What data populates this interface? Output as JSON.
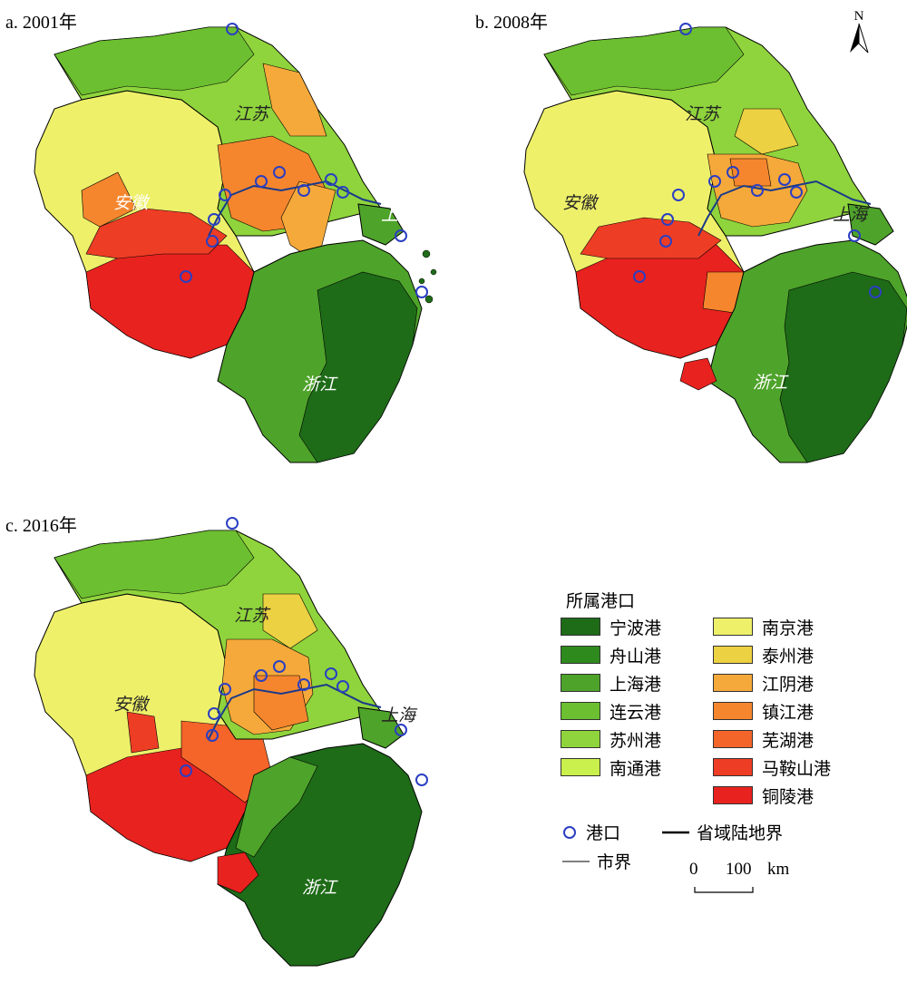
{
  "panels": [
    {
      "title": "a. 2001年",
      "labels": {
        "jiangsu": "江苏",
        "anhui": "安徽",
        "shanghai": "上海",
        "zhejiang": "浙江"
      }
    },
    {
      "title": "b. 2008年",
      "labels": {
        "jiangsu": "江苏",
        "anhui": "安徽",
        "shanghai": "上海",
        "zhejiang": "浙江"
      }
    },
    {
      "title": "c. 2016年",
      "labels": {
        "jiangsu": "江苏",
        "anhui": "安徽",
        "shanghai": "上海",
        "zhejiang": "浙江"
      }
    }
  ],
  "north_label": "N",
  "legend": {
    "title": "所属港口",
    "items": [
      {
        "label": "宁波港",
        "color": "#1e6b18"
      },
      {
        "label": "舟山港",
        "color": "#2f8a1e"
      },
      {
        "label": "上海港",
        "color": "#4ea32a"
      },
      {
        "label": "连云港",
        "color": "#6cbf30"
      },
      {
        "label": "苏州港",
        "color": "#8fd43c"
      },
      {
        "label": "南通港",
        "color": "#c9f04c"
      },
      {
        "label": "南京港",
        "color": "#eef06a"
      },
      {
        "label": "泰州港",
        "color": "#ecd142"
      },
      {
        "label": "江阴港",
        "color": "#f5a93a"
      },
      {
        "label": "镇江港",
        "color": "#f5862e"
      },
      {
        "label": "芜湖港",
        "color": "#f4652a"
      },
      {
        "label": "马鞍山港",
        "color": "#ee3d25"
      },
      {
        "label": "铜陵港",
        "color": "#e8221f"
      }
    ],
    "port_symbol": "港口",
    "province_boundary": "省域陆地界",
    "city_boundary": "市界"
  },
  "scale": {
    "zero": "0",
    "value": "100",
    "unit": "km"
  }
}
